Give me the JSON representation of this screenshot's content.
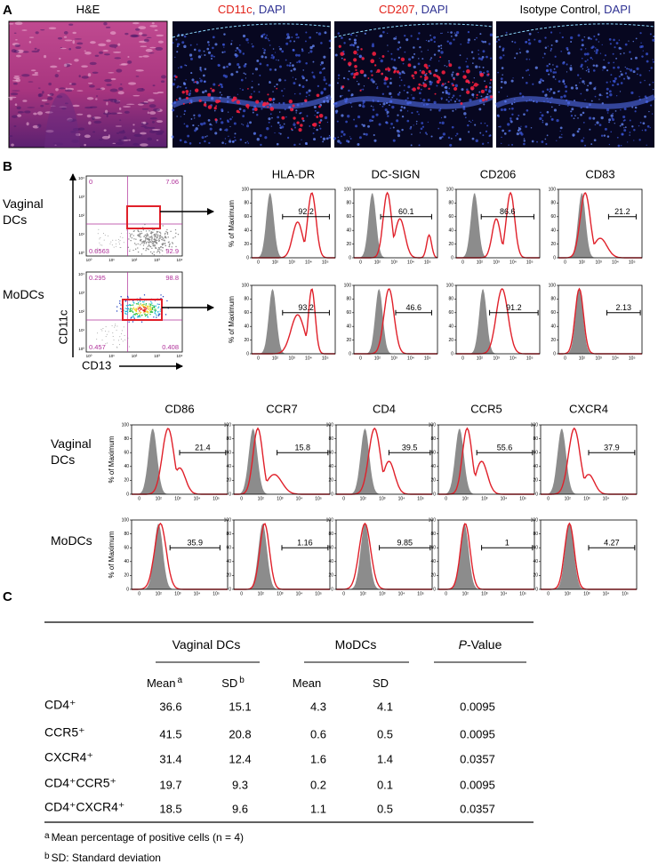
{
  "panel_a": {
    "label": "A",
    "images": [
      {
        "title": [
          {
            "text": "H&E",
            "color": "#000000"
          }
        ]
      },
      {
        "title": [
          {
            "text": "CD11c",
            "color": "#e2231a"
          },
          {
            "text": ", DAPI",
            "color": "#2e3192"
          }
        ]
      },
      {
        "title": [
          {
            "text": "CD207",
            "color": "#e2231a"
          },
          {
            "text": ", DAPI",
            "color": "#2e3192"
          }
        ]
      },
      {
        "title": [
          {
            "text": "Isotype Control,",
            "color": "#000000"
          },
          {
            "text": " DAPI",
            "color": "#2e3192"
          }
        ]
      }
    ]
  },
  "panel_b": {
    "label": "B",
    "dot_plots": {
      "x_label": "CD13",
      "y_label": "CD11c",
      "tick_labels": [
        "10⁰",
        "10¹",
        "10²",
        "10³",
        "10⁴"
      ],
      "plots": [
        {
          "row_label": "Vaginal DCs",
          "quadrants": [
            0,
            7.06,
            0.0563,
            92.9
          ]
        },
        {
          "row_label": "MoDCs",
          "quadrants": [
            0.295,
            98.8,
            0.457,
            0.408
          ]
        }
      ]
    },
    "histograms": {
      "y_label": "% of Maximum",
      "ylim": [
        0,
        100
      ],
      "yticks": [
        0,
        20,
        40,
        60,
        80,
        100
      ],
      "x_tick_labels": [
        "0",
        "10²",
        "10³",
        "10⁴",
        "10⁵"
      ],
      "groups": [
        {
          "markers": [
            "HLA-DR",
            "DC-SIGN",
            "CD206",
            "CD83"
          ],
          "rows": [
            {
              "values": [
                92.2,
                60.1,
                86.6,
                21.2
              ]
            },
            {
              "values": [
                93.2,
                46.6,
                91.2,
                2.13
              ]
            }
          ]
        },
        {
          "markers": [
            "CD86",
            "CCR7",
            "CD4",
            "CCR5",
            "CXCR4"
          ],
          "rows": [
            {
              "label": "Vaginal DCs",
              "values": [
                21.4,
                15.8,
                39.5,
                55.6,
                37.9
              ]
            },
            {
              "label": "MoDCs",
              "values": [
                35.9,
                1.16,
                9.85,
                1,
                4.27
              ]
            }
          ]
        }
      ]
    }
  },
  "panel_c": {
    "label": "C",
    "groups": [
      {
        "text": "Vaginal DCs"
      },
      {
        "text": "MoDCs"
      },
      {
        "italic": "P",
        "text": "-Value"
      }
    ],
    "subheaders": [
      {
        "text": "Mean",
        "note": "a"
      },
      {
        "text": "SD",
        "note": "b"
      },
      {
        "text": "Mean"
      },
      {
        "text": "SD"
      }
    ],
    "rows": [
      [
        "CD4⁺",
        36.6,
        15.1,
        4.3,
        4.1,
        0.0095
      ],
      [
        "CCR5⁺",
        41.5,
        20.8,
        0.6,
        0.5,
        0.0095
      ],
      [
        "CXCR4⁺",
        31.4,
        12.4,
        1.6,
        1.4,
        0.0357
      ],
      [
        "CD4⁺CCR5⁺",
        19.7,
        9.3,
        0.2,
        0.1,
        0.0095
      ],
      [
        "CD4⁺CXCR4⁺",
        18.5,
        9.6,
        1.1,
        0.5,
        0.0357
      ]
    ],
    "footnotes": [
      {
        "mark": "a",
        "text": "Mean percentage of positive cells (n = 4)"
      },
      {
        "mark": "b",
        "text": "SD: Standard deviation"
      }
    ]
  }
}
